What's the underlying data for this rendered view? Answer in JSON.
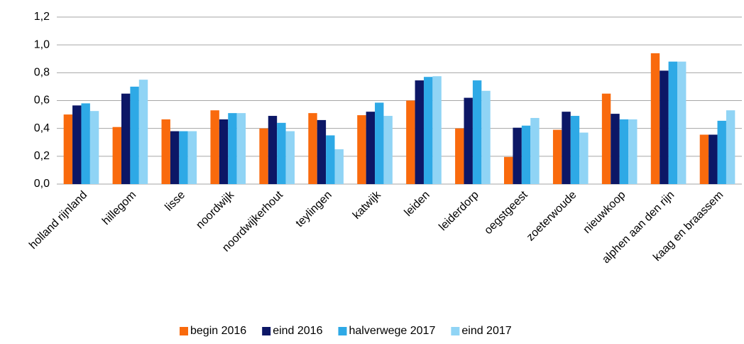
{
  "chart_data": {
    "type": "bar",
    "categories": [
      "holland rijnland",
      "hillegom",
      "lisse",
      "noordwijk",
      "noordwijkerhout",
      "teylingen",
      "katwijk",
      "leiden",
      "leiderdorp",
      "oegstgeest",
      "zoeterwoude",
      "nieuwkoop",
      "alphen aan den rijn",
      "kaag en braassem"
    ],
    "series": [
      {
        "name": "begin 2016",
        "color": "#f96a0d",
        "values": [
          0.5,
          0.41,
          0.465,
          0.53,
          0.4,
          0.51,
          0.495,
          0.6,
          0.4,
          0.195,
          0.39,
          0.65,
          0.94,
          0.355
        ]
      },
      {
        "name": "eind 2016",
        "color": "#0c1766",
        "values": [
          0.565,
          0.65,
          0.38,
          0.465,
          0.49,
          0.46,
          0.52,
          0.745,
          0.62,
          0.405,
          0.52,
          0.505,
          0.815,
          0.355
        ]
      },
      {
        "name": "halverwege 2017",
        "color": "#2ea9e6",
        "values": [
          0.58,
          0.7,
          0.38,
          0.51,
          0.44,
          0.35,
          0.585,
          0.77,
          0.745,
          0.42,
          0.49,
          0.465,
          0.88,
          0.455
        ]
      },
      {
        "name": "eind 2017",
        "color": "#90d4f5",
        "values": [
          0.525,
          0.75,
          0.38,
          0.51,
          0.38,
          0.25,
          0.49,
          0.775,
          0.67,
          0.475,
          0.37,
          0.465,
          0.88,
          0.53
        ]
      }
    ],
    "ylim": [
      0,
      1.2
    ],
    "yticks": [
      {
        "value": 0,
        "label": "0,0"
      },
      {
        "value": 0.2,
        "label": "0,2"
      },
      {
        "value": 0.4,
        "label": "0,4"
      },
      {
        "value": 0.6,
        "label": "0,6"
      },
      {
        "value": 0.8,
        "label": "0,8"
      },
      {
        "value": 1.0,
        "label": "1,0"
      },
      {
        "value": 1.2,
        "label": "1,2"
      }
    ],
    "grid": true,
    "legend": "bottom"
  }
}
